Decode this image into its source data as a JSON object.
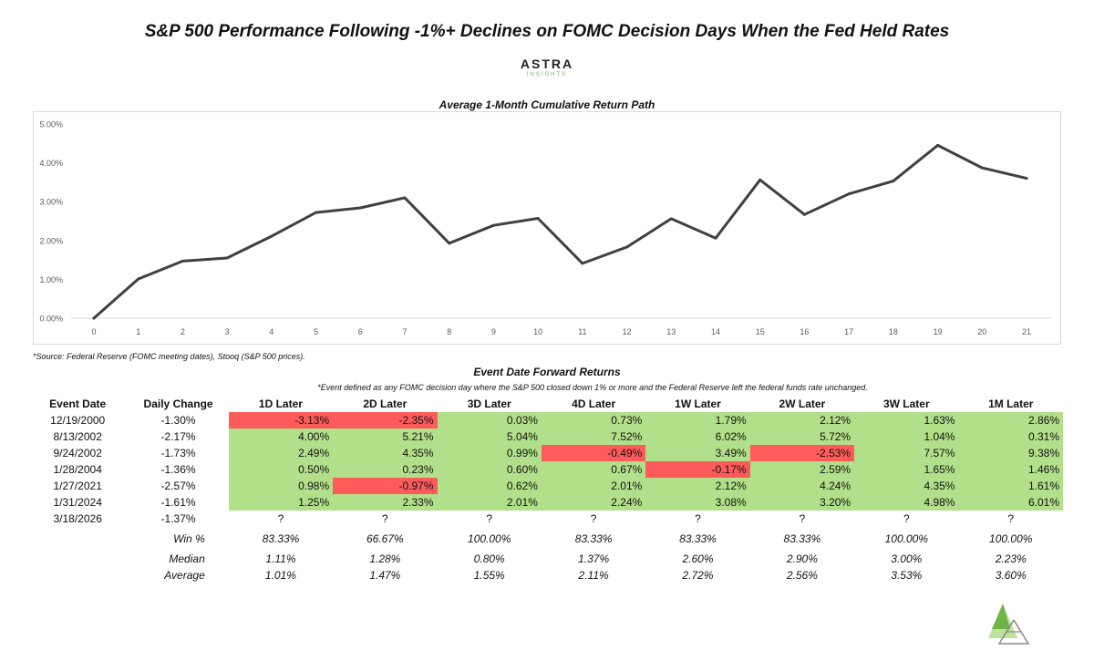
{
  "title": "S&P 500 Performance Following -1%+ Declines on FOMC Decision Days When the Fed Held Rates",
  "brand": {
    "name": "ASTRA",
    "sub": "INSIGHTS",
    "colors": {
      "green_light": "#b5e08f",
      "green_dark": "#5aa832",
      "grey": "#888888"
    }
  },
  "chart_data": {
    "type": "line",
    "title": "Average 1-Month Cumulative Return Path",
    "xlabel": "",
    "ylabel": "",
    "x": [
      0,
      1,
      2,
      3,
      4,
      5,
      6,
      7,
      8,
      9,
      10,
      11,
      12,
      13,
      14,
      15,
      16,
      17,
      18,
      19,
      20,
      21
    ],
    "y_ticks": [
      "0.00%",
      "1.00%",
      "2.00%",
      "3.00%",
      "4.00%",
      "5.00%"
    ],
    "ylim": [
      0,
      5
    ],
    "grid": false,
    "series": [
      {
        "name": "",
        "color": "#404040",
        "values": [
          0.0,
          1.01,
          1.47,
          1.55,
          2.11,
          2.72,
          2.84,
          3.1,
          1.93,
          2.39,
          2.57,
          1.41,
          1.83,
          2.56,
          2.06,
          3.56,
          2.67,
          3.2,
          3.53,
          4.45,
          3.87,
          3.6
        ]
      }
    ]
  },
  "source_note": "*Source: Federal Reserve (FOMC meeting dates), Stooq (S&P 500 prices).",
  "table": {
    "title": "Event Date Forward Returns",
    "note": "*Event defined as any FOMC decision day where the S&P 500 closed down 1% or more and the Federal Reserve left the federal funds rate unchanged.",
    "headers": [
      "Event Date",
      "Daily Change",
      "1D Later",
      "2D Later",
      "3D Later",
      "4D Later",
      "1W Later",
      "2W Later",
      "3W Later",
      "1M Later"
    ],
    "colors": {
      "positive": "#b2df8a",
      "negative": "#ff5b5b"
    },
    "rows": [
      {
        "date": "12/19/2000",
        "change": "-1.30%",
        "returns": [
          "-3.13%",
          "-2.35%",
          "0.03%",
          "0.73%",
          "1.79%",
          "2.12%",
          "1.63%",
          "2.86%"
        ]
      },
      {
        "date": "8/13/2002",
        "change": "-2.17%",
        "returns": [
          "4.00%",
          "5.21%",
          "5.04%",
          "7.52%",
          "6.02%",
          "5.72%",
          "1.04%",
          "0.31%"
        ]
      },
      {
        "date": "9/24/2002",
        "change": "-1.73%",
        "returns": [
          "2.49%",
          "4.35%",
          "0.99%",
          "-0.49%",
          "3.49%",
          "-2.53%",
          "7.57%",
          "9.38%"
        ]
      },
      {
        "date": "1/28/2004",
        "change": "-1.36%",
        "returns": [
          "0.50%",
          "0.23%",
          "0.60%",
          "0.67%",
          "-0.17%",
          "2.59%",
          "1.65%",
          "1.46%"
        ]
      },
      {
        "date": "1/27/2021",
        "change": "-2.57%",
        "returns": [
          "0.98%",
          "-0.97%",
          "0.62%",
          "2.01%",
          "2.12%",
          "4.24%",
          "4.35%",
          "1.61%"
        ]
      },
      {
        "date": "1/31/2024",
        "change": "-1.61%",
        "returns": [
          "1.25%",
          "2.33%",
          "2.01%",
          "2.24%",
          "3.08%",
          "3.20%",
          "4.98%",
          "6.01%"
        ]
      },
      {
        "date": "3/18/2026",
        "change": "-1.37%",
        "returns": [
          "?",
          "?",
          "?",
          "?",
          "?",
          "?",
          "?",
          "?"
        ]
      }
    ],
    "stats": [
      {
        "label": "Win %",
        "values": [
          "83.33%",
          "66.67%",
          "100.00%",
          "83.33%",
          "83.33%",
          "83.33%",
          "100.00%",
          "100.00%"
        ]
      },
      {
        "label": "Median",
        "values": [
          "1.11%",
          "1.28%",
          "0.80%",
          "1.37%",
          "2.60%",
          "2.90%",
          "3.00%",
          "2.23%"
        ]
      },
      {
        "label": "Average",
        "values": [
          "1.01%",
          "1.47%",
          "1.55%",
          "2.11%",
          "2.72%",
          "2.56%",
          "3.53%",
          "3.60%"
        ]
      }
    ]
  }
}
